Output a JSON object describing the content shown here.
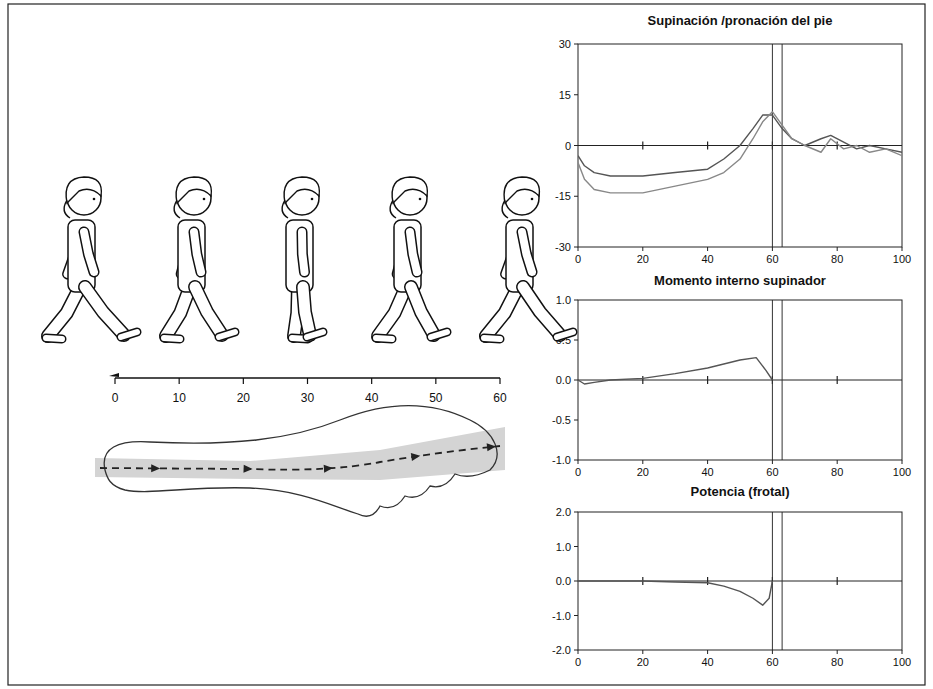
{
  "chart_data": [
    {
      "type": "line",
      "title": "Supinación /pronación del pie",
      "x": [
        0,
        2,
        5,
        10,
        20,
        30,
        40,
        45,
        50,
        54,
        57,
        60,
        63,
        66,
        70,
        75,
        78,
        82,
        86,
        90,
        95,
        100
      ],
      "series": [
        {
          "color": "#555555",
          "values": [
            -3,
            -6,
            -8,
            -9,
            -9,
            -8,
            -7,
            -4,
            0,
            5,
            9,
            9,
            5,
            2,
            0,
            2,
            3,
            1,
            -1,
            0,
            -1,
            -2
          ]
        },
        {
          "color": "#888888",
          "values": [
            -5,
            -10,
            -13,
            -14,
            -14,
            -12,
            -10,
            -8,
            -4,
            2,
            7,
            10,
            6,
            2,
            0,
            -2,
            2,
            -1,
            0,
            -2,
            -1,
            -3
          ]
        }
      ],
      "xlim": [
        0,
        100
      ],
      "xticks": [
        0,
        20,
        40,
        60,
        80,
        100
      ],
      "ylim": [
        -30,
        30
      ],
      "yticks": [
        -30,
        -15,
        0,
        15,
        30
      ],
      "hline": 0,
      "vlines": [
        60,
        63
      ],
      "grid": false
    },
    {
      "type": "line",
      "title": "Momento interno supinador",
      "x": [
        0,
        2,
        5,
        10,
        20,
        30,
        40,
        45,
        50,
        55,
        58,
        60
      ],
      "series": [
        {
          "color": "#555555",
          "values": [
            0,
            -0.05,
            -0.03,
            0,
            0.02,
            0.08,
            0.15,
            0.2,
            0.25,
            0.28,
            0.12,
            0
          ]
        }
      ],
      "xlim": [
        0,
        100
      ],
      "xticks": [
        0,
        20,
        40,
        60,
        80,
        100
      ],
      "ylim": [
        -1,
        1
      ],
      "yticks": [
        {
          "value": -1,
          "label": "-1.0"
        },
        -0.5,
        {
          "value": 0,
          "label": "0.0"
        },
        0.5,
        {
          "value": 1,
          "label": "1.0"
        }
      ],
      "hline": 0,
      "vlines": [
        60,
        63
      ],
      "grid": false
    },
    {
      "type": "line",
      "title": "Potencia (frotal)",
      "x": [
        0,
        10,
        20,
        30,
        40,
        45,
        50,
        54,
        57,
        59,
        60
      ],
      "series": [
        {
          "color": "#555555",
          "values": [
            0,
            0,
            0,
            -0.03,
            -0.05,
            -0.15,
            -0.3,
            -0.5,
            -0.7,
            -0.5,
            0
          ]
        }
      ],
      "xlim": [
        0,
        100
      ],
      "xticks": [
        0,
        20,
        40,
        60,
        80,
        100
      ],
      "ylim": [
        -2,
        2
      ],
      "yticks": [
        {
          "value": -2,
          "label": "-2.0"
        },
        {
          "value": -1,
          "label": "-1.0"
        },
        {
          "value": 0,
          "label": "0.0"
        },
        {
          "value": 1,
          "label": "1.0"
        },
        {
          "value": 2,
          "label": "2.0"
        }
      ],
      "hline": 0,
      "vlines": [
        60,
        63
      ],
      "grid": false
    }
  ],
  "gait_axis": {
    "xlim": [
      0,
      60
    ],
    "xticks": [
      0,
      10,
      20,
      30,
      40,
      50,
      60
    ]
  }
}
